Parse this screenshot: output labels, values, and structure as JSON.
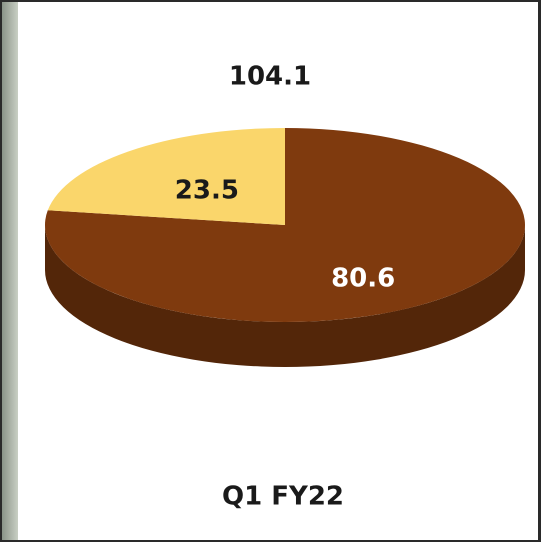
{
  "chart_data": {
    "type": "pie",
    "title": "104.1",
    "label": "Q1 FY22",
    "values": [
      80.6,
      23.5
    ],
    "colors": [
      "#7f3a0e",
      "#fad66b"
    ],
    "label_colors": [
      "#ffffff",
      "#1a1a1a"
    ]
  }
}
